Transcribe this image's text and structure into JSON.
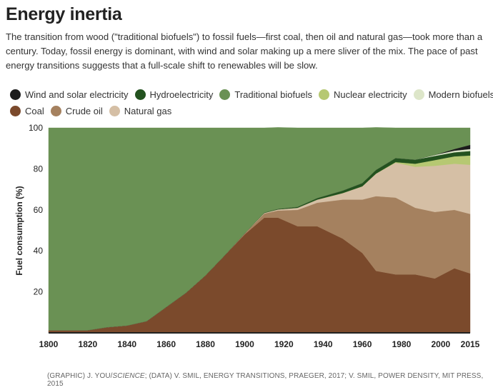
{
  "title": "Energy inertia",
  "subtitle": "The transition from wood (\"traditional biofuels\") to fossil fuels—first coal, then oil and natural gas—took more than a century. Today, fossil energy is dominant, with wind and solar making up a mere sliver of the mix. The pace of past energy transitions suggests that a full-scale shift to renewables will be slow.",
  "credit": {
    "part1": "(GRAPHIC) J. YOU/",
    "part2": "SCIENCE",
    "part3": "; (DATA) V. SMIL, ENERGY TRANSITIONS, PRAEGER, 2017; V. SMIL, POWER DENSITY, MIT PRESS, 2015"
  },
  "colors": {
    "background": "#ffffff",
    "axis": "#222222"
  },
  "chart_data": {
    "type": "area",
    "stacked": true,
    "title": "Energy inertia",
    "ylabel": "Fuel consumption (%)",
    "xlabel": "",
    "xlim": [
      1800,
      2015
    ],
    "ylim": [
      0,
      100
    ],
    "x_ticks": [
      "1800",
      "1820",
      "1840",
      "1860",
      "1880",
      "1900",
      "1920",
      "1940",
      "1960",
      "1980",
      "2000",
      "2015"
    ],
    "y_ticks": [
      "20",
      "40",
      "60",
      "80",
      "100"
    ],
    "grid": false,
    "legend_position": "top",
    "x": [
      1800,
      1820,
      1830,
      1840,
      1850,
      1860,
      1870,
      1880,
      1890,
      1900,
      1910,
      1917,
      1927,
      1937,
      1950,
      1960,
      1967,
      1977,
      1987,
      1997,
      2007,
      2015
    ],
    "series": [
      {
        "name": "Coal",
        "color": "#7b4a2c",
        "values": [
          1.3,
          1.3,
          2.8,
          3.6,
          5.7,
          12.6,
          19.5,
          28,
          38,
          48,
          56.2,
          56.2,
          52,
          52,
          46,
          39,
          30.2,
          28.5,
          28.5,
          26.5,
          31.5,
          29
        ]
      },
      {
        "name": "Crude oil",
        "color": "#a5815f",
        "values": [
          0,
          0,
          0,
          0,
          0,
          0,
          0,
          0,
          0,
          0.5,
          2,
          3.5,
          8,
          11.5,
          19,
          26,
          36.5,
          37.5,
          32.5,
          32.5,
          28.5,
          29
        ]
      },
      {
        "name": "Natural gas",
        "color": "#d5bfa5",
        "values": [
          0,
          0,
          0,
          0,
          0,
          0,
          0,
          0,
          0,
          0,
          0.3,
          0.5,
          1,
          1.5,
          3.2,
          6.5,
          11,
          17,
          20,
          22.5,
          22.5,
          24
        ]
      },
      {
        "name": "Nuclear electricity",
        "color": "#b6c872",
        "values": [
          0,
          0,
          0,
          0,
          0,
          0,
          0,
          0,
          0,
          0,
          0,
          0,
          0,
          0,
          0,
          0,
          0,
          0.3,
          1.5,
          2.8,
          3.6,
          4.5
        ]
      },
      {
        "name": "Hydroelectricity",
        "color": "#23521f",
        "values": [
          0,
          0,
          0,
          0,
          0,
          0,
          0,
          0,
          0,
          0,
          0.2,
          0.3,
          0.5,
          0.8,
          1.2,
          1.6,
          1.8,
          2,
          2,
          2,
          2,
          2.2
        ]
      },
      {
        "name": "Modern biofuels",
        "color": "#dde6c9",
        "values": [
          0,
          0,
          0,
          0,
          0,
          0,
          0,
          0,
          0,
          0,
          0,
          0,
          0,
          0,
          0,
          0,
          0,
          0,
          0,
          0.5,
          0.8,
          1
        ]
      },
      {
        "name": "Wind and solar electricity",
        "color": "#1c1c1c",
        "values": [
          0,
          0,
          0,
          0,
          0,
          0,
          0,
          0,
          0,
          0,
          0,
          0,
          0,
          0,
          0,
          0,
          0,
          0,
          0,
          0,
          0.8,
          2
        ]
      },
      {
        "name": "Traditional biofuels",
        "color": "#6a9154",
        "values": [
          98.7,
          98.7,
          97.2,
          96.4,
          94.3,
          87.4,
          80.5,
          72,
          62,
          51.5,
          41.3,
          39.7,
          38.5,
          34.2,
          30.6,
          26.9,
          20.7,
          14.7,
          15.5,
          13.2,
          10.3,
          8.3
        ]
      }
    ]
  },
  "legend": {
    "rows": [
      [
        {
          "label": "Wind and solar electricity",
          "color": "#1c1c1c"
        },
        {
          "label": "Hydroelectricity",
          "color": "#23521f"
        },
        {
          "label": "Traditional biofuels",
          "color": "#6a9154"
        },
        {
          "label": "Nuclear electricity",
          "color": "#b6c872"
        },
        {
          "label": "Modern biofuels",
          "color": "#dde6c9"
        }
      ],
      [
        {
          "label": "Coal",
          "color": "#7b4a2c"
        },
        {
          "label": "Crude oil",
          "color": "#a5815f"
        },
        {
          "label": "Natural gas",
          "color": "#d5bfa5"
        }
      ]
    ]
  }
}
